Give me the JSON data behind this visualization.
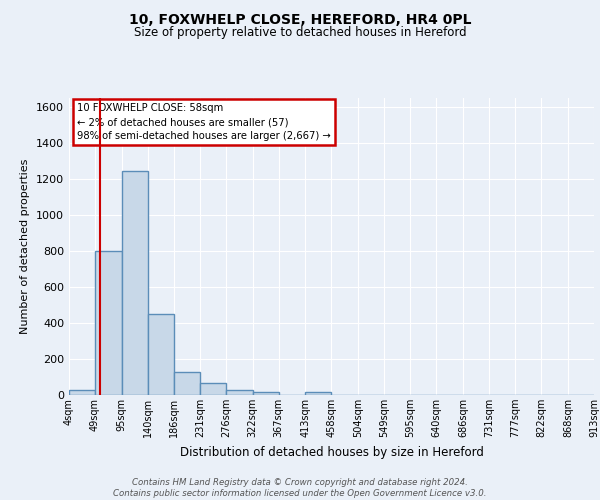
{
  "title": "10, FOXWHELP CLOSE, HEREFORD, HR4 0PL",
  "subtitle": "Size of property relative to detached houses in Hereford",
  "xlabel": "Distribution of detached houses by size in Hereford",
  "ylabel": "Number of detached properties",
  "bin_labels": [
    "4sqm",
    "49sqm",
    "95sqm",
    "140sqm",
    "186sqm",
    "231sqm",
    "276sqm",
    "322sqm",
    "367sqm",
    "413sqm",
    "458sqm",
    "504sqm",
    "549sqm",
    "595sqm",
    "640sqm",
    "686sqm",
    "731sqm",
    "777sqm",
    "822sqm",
    "868sqm",
    "913sqm"
  ],
  "bar_heights": [
    25,
    800,
    1240,
    450,
    130,
    65,
    25,
    15,
    0,
    15,
    0,
    0,
    0,
    0,
    0,
    0,
    0,
    0,
    0,
    0
  ],
  "bar_color": "#c8d8e8",
  "bar_edgecolor": "#5b8db8",
  "bar_linewidth": 1.0,
  "vline_x": 58,
  "vline_color": "#cc0000",
  "vline_linewidth": 1.5,
  "annotation_text": "10 FOXWHELP CLOSE: 58sqm\n← 2% of detached houses are smaller (57)\n98% of semi-detached houses are larger (2,667) →",
  "annotation_box_color": "#cc0000",
  "ylim": [
    0,
    1650
  ],
  "yticks": [
    0,
    200,
    400,
    600,
    800,
    1000,
    1200,
    1400,
    1600
  ],
  "bg_color": "#eaf0f8",
  "plot_bg_color": "#eaf0f8",
  "grid_color": "#ffffff",
  "footer_text": "Contains HM Land Registry data © Crown copyright and database right 2024.\nContains public sector information licensed under the Open Government Licence v3.0.",
  "bin_edges": [
    4,
    49,
    95,
    140,
    186,
    231,
    276,
    322,
    367,
    413,
    458,
    504,
    549,
    595,
    640,
    686,
    731,
    777,
    822,
    868,
    913
  ]
}
